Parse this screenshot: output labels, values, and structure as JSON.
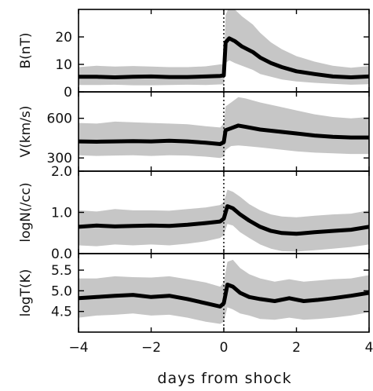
{
  "figure_label": "",
  "chart_data": [
    {
      "type": "area",
      "name": "B",
      "ylabel": "B(nT)",
      "ylim": [
        0,
        30
      ],
      "yticks": [
        0,
        10,
        20
      ],
      "ytick_labels": [
        "0",
        "10",
        "20"
      ],
      "xlim": [
        -4,
        4
      ],
      "x": [
        -4,
        -3.5,
        -3,
        -2.5,
        -2,
        -1.5,
        -1,
        -0.5,
        -0.1,
        0.0,
        0.05,
        0.15,
        0.3,
        0.5,
        0.8,
        1.0,
        1.3,
        1.6,
        2.0,
        2.5,
        3.0,
        3.5,
        4.0
      ],
      "mean": [
        5.5,
        5.5,
        5.3,
        5.5,
        5.6,
        5.4,
        5.4,
        5.6,
        5.8,
        6.0,
        18.0,
        19.5,
        18.5,
        16.5,
        14.5,
        12.5,
        10.5,
        9.0,
        7.5,
        6.5,
        5.6,
        5.3,
        5.6
      ],
      "upper": [
        9.0,
        9.5,
        9.2,
        9.4,
        9.2,
        9.0,
        9.0,
        9.3,
        10.0,
        10.0,
        28.0,
        31.0,
        30.0,
        27.5,
        24.5,
        21.5,
        18.0,
        15.5,
        13.0,
        11.0,
        9.5,
        8.8,
        9.4
      ],
      "lower": [
        2.5,
        2.5,
        2.6,
        2.4,
        2.4,
        2.5,
        2.6,
        2.5,
        2.7,
        2.8,
        10.5,
        11.5,
        10.5,
        9.5,
        8.0,
        6.5,
        5.5,
        4.5,
        3.8,
        3.3,
        2.9,
        2.6,
        2.8
      ]
    },
    {
      "type": "area",
      "name": "V",
      "ylabel": "V(km/s)",
      "ylim": [
        200,
        800
      ],
      "yticks": [
        300,
        600
      ],
      "ytick_labels": [
        "300",
        "600"
      ],
      "xlim": [
        -4,
        4
      ],
      "x": [
        -4,
        -3.5,
        -3,
        -2.5,
        -2,
        -1.5,
        -1,
        -0.5,
        -0.1,
        0.0,
        0.05,
        0.2,
        0.4,
        0.6,
        1.0,
        1.5,
        2.0,
        2.5,
        3.0,
        3.5,
        4.0
      ],
      "mean": [
        425,
        423,
        425,
        427,
        425,
        430,
        425,
        415,
        405,
        420,
        510,
        525,
        545,
        535,
        515,
        500,
        485,
        470,
        460,
        455,
        455
      ],
      "upper": [
        565,
        560,
        575,
        570,
        565,
        560,
        555,
        540,
        530,
        560,
        690,
        720,
        760,
        750,
        720,
        690,
        660,
        630,
        610,
        600,
        610
      ],
      "lower": [
        320,
        315,
        318,
        320,
        315,
        320,
        318,
        310,
        300,
        310,
        360,
        390,
        395,
        390,
        380,
        365,
        350,
        340,
        335,
        330,
        330
      ]
    },
    {
      "type": "area",
      "name": "logN",
      "ylabel": "logN(/cc)",
      "ylim": [
        0.0,
        2.0
      ],
      "yticks": [
        0.0,
        1.0,
        2.0
      ],
      "ytick_labels": [
        "0.0",
        "1.0",
        "2.0"
      ],
      "xlim": [
        -4,
        4
      ],
      "x": [
        -4,
        -3.5,
        -3,
        -2.5,
        -2,
        -1.5,
        -1,
        -0.5,
        -0.1,
        0.0,
        0.1,
        0.25,
        0.45,
        0.7,
        1.0,
        1.3,
        1.6,
        2.0,
        2.5,
        3.0,
        3.5,
        4.0
      ],
      "mean": [
        0.65,
        0.68,
        0.66,
        0.67,
        0.68,
        0.67,
        0.7,
        0.74,
        0.78,
        0.85,
        1.15,
        1.1,
        0.95,
        0.8,
        0.65,
        0.55,
        0.5,
        0.48,
        0.52,
        0.55,
        0.58,
        0.65
      ],
      "upper": [
        1.05,
        1.02,
        1.08,
        1.05,
        1.05,
        1.04,
        1.08,
        1.12,
        1.18,
        1.25,
        1.55,
        1.5,
        1.38,
        1.2,
        1.05,
        0.95,
        0.9,
        0.88,
        0.92,
        0.95,
        0.97,
        1.05
      ],
      "lower": [
        0.2,
        0.18,
        0.22,
        0.2,
        0.22,
        0.2,
        0.24,
        0.3,
        0.38,
        0.45,
        0.72,
        0.68,
        0.52,
        0.38,
        0.22,
        0.12,
        0.06,
        0.05,
        0.08,
        0.12,
        0.16,
        0.22
      ]
    },
    {
      "type": "area",
      "name": "logT",
      "ylabel": "logT(K)",
      "ylim": [
        4.0,
        5.9
      ],
      "yticks": [
        4.5,
        5.0,
        5.5
      ],
      "ytick_labels": [
        "4.5",
        "5.0",
        "5.5"
      ],
      "xlim": [
        -4,
        4
      ],
      "x": [
        -4,
        -3.5,
        -3,
        -2.5,
        -2,
        -1.5,
        -1,
        -0.5,
        -0.1,
        0.0,
        0.1,
        0.25,
        0.45,
        0.7,
        1.0,
        1.4,
        1.8,
        2.2,
        2.6,
        3.0,
        3.5,
        4.0
      ],
      "mean": [
        4.82,
        4.85,
        4.88,
        4.9,
        4.85,
        4.88,
        4.8,
        4.7,
        4.62,
        4.7,
        5.15,
        5.1,
        4.95,
        4.85,
        4.8,
        4.75,
        4.82,
        4.75,
        4.78,
        4.82,
        4.88,
        4.95
      ],
      "upper": [
        5.3,
        5.3,
        5.35,
        5.33,
        5.32,
        5.35,
        5.28,
        5.2,
        5.1,
        5.2,
        5.7,
        5.75,
        5.55,
        5.4,
        5.3,
        5.22,
        5.28,
        5.22,
        5.25,
        5.28,
        5.3,
        5.38
      ],
      "lower": [
        4.35,
        4.4,
        4.42,
        4.45,
        4.4,
        4.42,
        4.35,
        4.25,
        4.2,
        4.25,
        4.6,
        4.55,
        4.45,
        4.4,
        4.32,
        4.3,
        4.35,
        4.3,
        4.32,
        4.35,
        4.4,
        4.48
      ]
    }
  ],
  "x_axis": {
    "label": "days from shock",
    "ticks": [
      -4,
      -2,
      0,
      2,
      4
    ],
    "tick_labels": [
      "−4",
      "−2",
      "0",
      "2",
      "4"
    ]
  },
  "shock_marker_x": 0
}
